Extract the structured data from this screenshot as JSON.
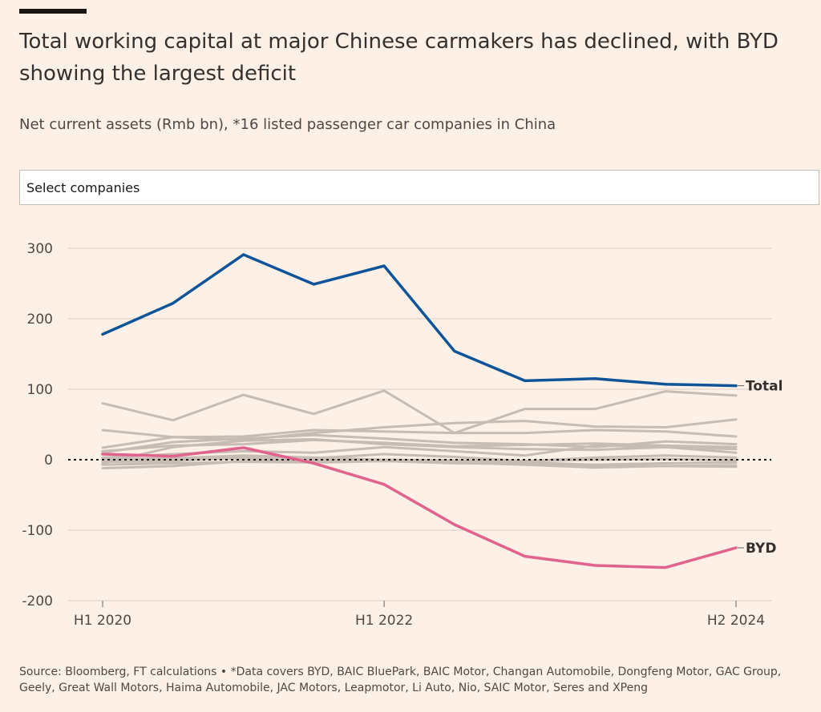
{
  "header": {
    "title": "Total working capital at major Chinese carmakers has declined, with BYD showing the largest deficit",
    "subtitle": "Net current assets (Rmb bn), *16 listed passenger car companies in China"
  },
  "controls": {
    "select_label": "Select companies"
  },
  "footer": {
    "source": "Source: Bloomberg, FT calculations • *Data covers BYD, BAIC BluePark, BAIC Motor, Changan Automobile, Dongfeng Motor, GAC Group, Geely, Great Wall Motors, Haima Automobile, JAC Motors, Leapmotor, Li Auto, Nio, SAIC Motor, Seres and XPeng"
  },
  "colors": {
    "background": "#fdf1e7",
    "total": "#0f5499",
    "byd": "#e0628d",
    "others": "#c6bcb4",
    "grid": "#d9cdc3"
  },
  "chart_data": {
    "type": "line",
    "x": [
      "H1 2020",
      "H2 2020",
      "H1 2021",
      "H2 2021",
      "H1 2022",
      "H2 2022",
      "H1 2023",
      "H2 2023",
      "H1 2024",
      "H2 2024"
    ],
    "x_tick_labels": [
      "H1 2020",
      "H1 2022",
      "H2 2024"
    ],
    "y_ticks": [
      300,
      200,
      100,
      0,
      -100,
      -200
    ],
    "y_tick_labels": [
      "300",
      "200",
      "100",
      "0",
      "-100",
      "-200"
    ],
    "ylim": [
      -200,
      300
    ],
    "grid": true,
    "zero_line": "dotted",
    "series": [
      {
        "name": "Total",
        "labeled": true,
        "values": [
          178,
          222,
          291,
          249,
          275,
          154,
          112,
          115,
          107,
          105
        ]
      },
      {
        "name": "BYD",
        "labeled": true,
        "values": [
          8,
          5,
          17,
          -5,
          -35,
          -92,
          -137,
          -150,
          -153,
          -125
        ]
      },
      {
        "labeled": false,
        "values": [
          80,
          56,
          92,
          65,
          98,
          38,
          72,
          72,
          97,
          91
        ]
      },
      {
        "labeled": false,
        "values": [
          42,
          32,
          28,
          38,
          46,
          52,
          55,
          47,
          46,
          57
        ]
      },
      {
        "labeled": false,
        "values": [
          17,
          32,
          33,
          42,
          40,
          38,
          38,
          42,
          40,
          33
        ]
      },
      {
        "labeled": false,
        "values": [
          10,
          25,
          30,
          35,
          30,
          24,
          22,
          18,
          26,
          22
        ]
      },
      {
        "labeled": false,
        "values": [
          -5,
          18,
          27,
          29,
          22,
          18,
          15,
          14,
          18,
          15
        ]
      },
      {
        "labeled": false,
        "values": [
          3,
          8,
          12,
          10,
          18,
          12,
          6,
          20,
          18,
          10
        ]
      },
      {
        "labeled": false,
        "values": [
          -3,
          -2,
          5,
          2,
          8,
          4,
          -2,
          3,
          6,
          3
        ]
      },
      {
        "labeled": false,
        "values": [
          2,
          0,
          2,
          -2,
          -1,
          -3,
          -4,
          -7,
          -5,
          -4
        ]
      },
      {
        "labeled": false,
        "values": [
          -7,
          -5,
          -3,
          -4,
          -2,
          -5,
          -6,
          -8,
          -9,
          -8
        ]
      },
      {
        "labeled": false,
        "values": [
          -12,
          -9,
          -2,
          -1,
          0,
          -4,
          -7,
          -11,
          -9,
          -10
        ]
      },
      {
        "labeled": false,
        "values": [
          1,
          2,
          6,
          3,
          0,
          -1,
          -2,
          0,
          1,
          -1
        ]
      },
      {
        "labeled": false,
        "values": [
          12,
          20,
          22,
          28,
          24,
          19,
          21,
          23,
          20,
          18
        ]
      }
    ]
  }
}
